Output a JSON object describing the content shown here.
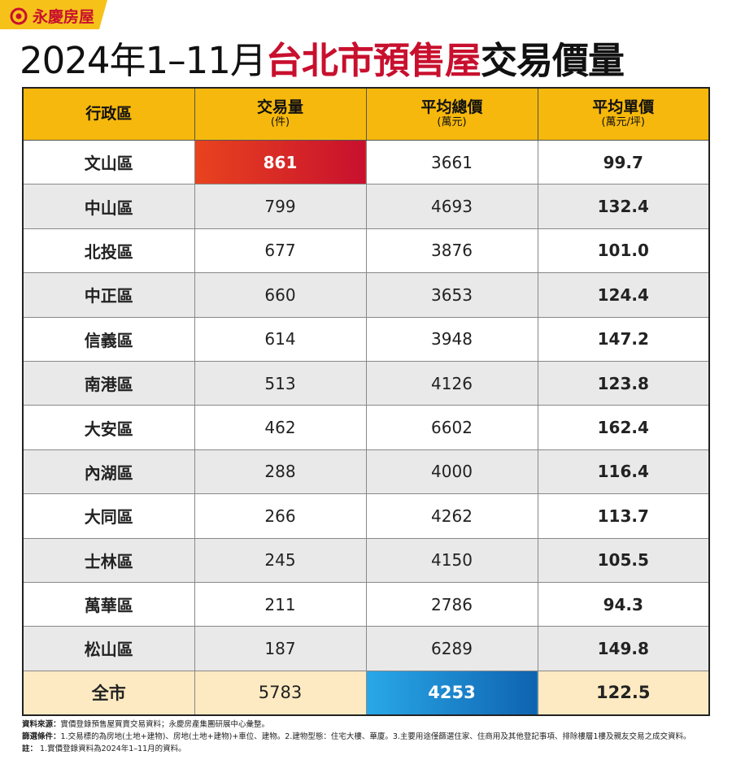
{
  "logo": "永慶房屋",
  "title": {
    "part1": "2024年1–11月",
    "part2": "台北市預售屋",
    "part3": "交易價量"
  },
  "table": {
    "header": [
      {
        "label": "行政區"
      },
      {
        "label": "交易量",
        "unit": "(件)"
      },
      {
        "label": "平均總價",
        "unit": "(萬元)"
      },
      {
        "label": "平均單價",
        "unit": "(萬元/坪)"
      }
    ],
    "rows": [
      [
        "文山區",
        "861",
        "3661",
        "99.7"
      ],
      [
        "中山區",
        "799",
        "4693",
        "132.4"
      ],
      [
        "北投區",
        "677",
        "3876",
        "101.0"
      ],
      [
        "中正區",
        "660",
        "3653",
        "124.4"
      ],
      [
        "信義區",
        "614",
        "3948",
        "147.2"
      ],
      [
        "南港區",
        "513",
        "4126",
        "123.8"
      ],
      [
        "大安區",
        "462",
        "6602",
        "162.4"
      ],
      [
        "內湖區",
        "288",
        "4000",
        "116.4"
      ],
      [
        "大同區",
        "266",
        "4262",
        "113.7"
      ],
      [
        "士林區",
        "245",
        "4150",
        "105.5"
      ],
      [
        "萬華區",
        "211",
        "2786",
        "94.3"
      ],
      [
        "松山區",
        "187",
        "6289",
        "149.8"
      ]
    ],
    "total": [
      "全市",
      "5783",
      "4253",
      "122.5"
    ]
  },
  "notes": [
    {
      "label": "資料來源：",
      "text": "實價登錄預售屋買賣交易資料；永慶房產集團研展中心彙整。"
    },
    {
      "label": "篩選條件：",
      "text": "1.交易標的為房地(土地+建物)、房地(土地+建物)+車位、建物。2.建物型態：住宅大樓、華廈。3.主要用途僅篩選住家、住商用及其他登記事項、排除樓層1樓及親友交易之成交資料。"
    },
    {
      "label": "註：",
      "text": " 1.實價登錄資料為2024年1–11月的資料。"
    }
  ]
}
